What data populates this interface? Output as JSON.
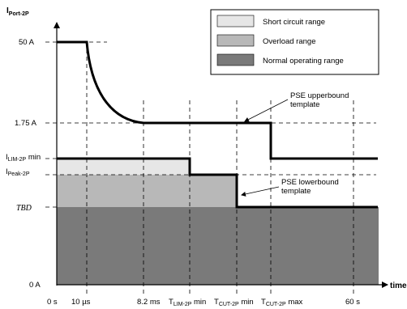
{
  "colors": {
    "short_circuit": "#e6e6e6",
    "overload": "#b8b8b8",
    "normal": "#7a7a7a",
    "lines": "#000000"
  },
  "axes": {
    "y_label": "I",
    "y_label_sub": "Port-2P",
    "x_label": "time"
  },
  "y_ticks": {
    "i_50": "50 A",
    "i_175": "1.75 A",
    "ilim_main": "I",
    "ilim_sub": "LIM-2P",
    "ilim_suffix": " min",
    "ipeak_main": "I",
    "ipeak_sub": "Peak-2P",
    "tbd": "TBD",
    "i_0": "0 A"
  },
  "x_ticks": {
    "t0": "0 s",
    "t10us": "10 µs",
    "t82ms": "8.2 ms",
    "tlim_main": "T",
    "tlim_sub": "LIM-2P",
    "tlim_suffix": " min",
    "tcut_min_main": "T",
    "tcut_min_sub": "CUT-2P",
    "tcut_min_suffix": " min",
    "tcut_max_main": "T",
    "tcut_max_sub": "CUT-2P",
    "tcut_max_suffix": " max",
    "t60s": "60 s"
  },
  "legend": {
    "short_circuit": "Short circuit range",
    "overload": "Overload range",
    "normal": "Normal operating range"
  },
  "annotations": {
    "upper_line1": "PSE upperbound",
    "upper_line2": "template",
    "lower_line1": "PSE lowerbound",
    "lower_line2": "template"
  }
}
